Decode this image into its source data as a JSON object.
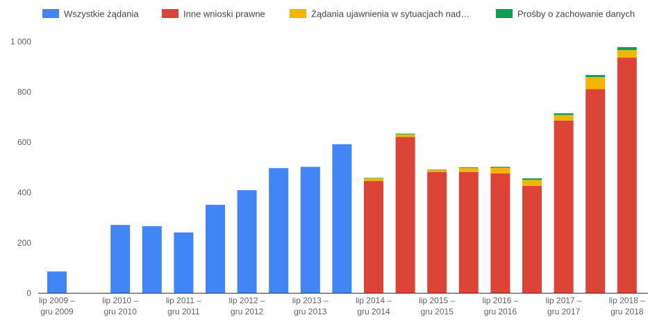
{
  "chart_data": {
    "type": "bar",
    "stacked": true,
    "legend_position": "top",
    "grid": false,
    "colors": {
      "all": "#4285F4",
      "legal": "#DB4437",
      "emergency": "#F4B400",
      "preservation": "#0F9D58",
      "axis": "#333333",
      "text": "#616161"
    },
    "series": [
      {
        "key": "all",
        "name": "Wszystkie żądania",
        "values": [
          85,
          0,
          270,
          265,
          240,
          350,
          408,
          496,
          501,
          591,
          0,
          0,
          0,
          0,
          0,
          0,
          0,
          0,
          0
        ]
      },
      {
        "key": "legal",
        "name": "Inne wnioski prawne",
        "values": [
          0,
          0,
          0,
          0,
          0,
          0,
          0,
          0,
          0,
          0,
          445,
          620,
          480,
          480,
          475,
          425,
          685,
          810,
          935
        ]
      },
      {
        "key": "emergency",
        "name": "Żądania ujawnienia w sytuacjach nad…",
        "values": [
          0,
          0,
          0,
          0,
          0,
          0,
          0,
          0,
          0,
          0,
          10,
          10,
          8,
          16,
          22,
          24,
          22,
          48,
          30
        ]
      },
      {
        "key": "preservation",
        "name": "Prośby o zachowanie danych",
        "values": [
          0,
          0,
          0,
          0,
          0,
          0,
          0,
          0,
          0,
          0,
          2,
          3,
          2,
          3,
          4,
          6,
          7,
          8,
          12
        ]
      }
    ],
    "x_tick_labels": [
      {
        "line1": "lip 2009 –",
        "line2": "gru 2009"
      },
      {
        "line1": "lip 2010 –",
        "line2": "gru 2010"
      },
      {
        "line1": "lip 2011 –",
        "line2": "gru 2011"
      },
      {
        "line1": "lip 2012 –",
        "line2": "gru 2012"
      },
      {
        "line1": "lip 2013 –",
        "line2": "gru 2013"
      },
      {
        "line1": "lip 2014 –",
        "line2": "gru 2014"
      },
      {
        "line1": "lip 2015 –",
        "line2": "gru 2015"
      },
      {
        "line1": "lip 2016 –",
        "line2": "gru 2016"
      },
      {
        "line1": "lip 2017 –",
        "line2": "gru 2017"
      },
      {
        "line1": "lip 2018 –",
        "line2": "gru 2018"
      }
    ],
    "y_ticks": [
      {
        "value": 0,
        "label": "0"
      },
      {
        "value": 200,
        "label": "200"
      },
      {
        "value": 400,
        "label": "400"
      },
      {
        "value": 600,
        "label": "600"
      },
      {
        "value": 800,
        "label": "800"
      },
      {
        "value": 1000,
        "label": "1 000"
      }
    ],
    "ylim": [
      0,
      1000
    ]
  }
}
